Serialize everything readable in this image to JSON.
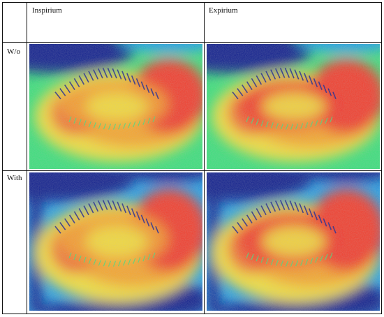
{
  "table": {
    "columns": [
      "Inspirium",
      "Expirium"
    ],
    "rows": [
      {
        "label": "W/o",
        "images": [
          "wo-inspirium",
          "wo-expirium"
        ]
      },
      {
        "label": "With",
        "images": [
          "with-inspirium",
          "with-expirium"
        ]
      }
    ]
  },
  "palette": {
    "cold": "#101a8c",
    "cool": "#1ea0e6",
    "mid": "#38e07a",
    "warm": "#f3e03a",
    "hot": "#f7a42c",
    "hottest": "#f23a2c"
  }
}
